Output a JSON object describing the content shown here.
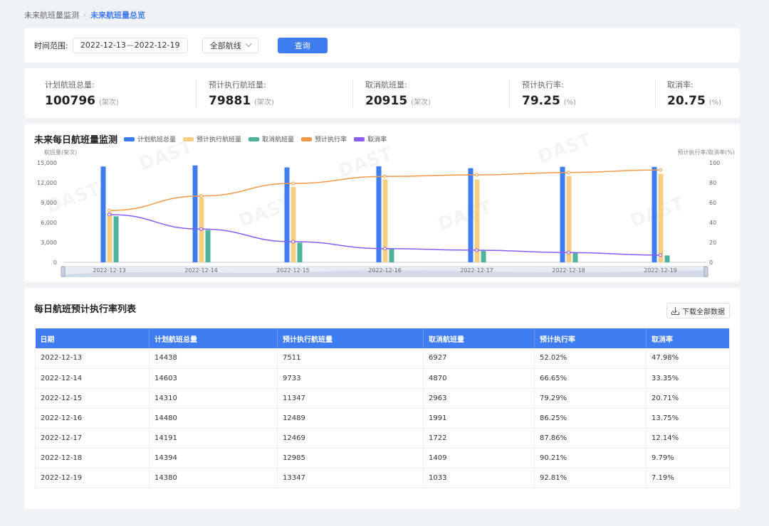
{
  "breadcrumb": {
    "parent": "未来航班量监测",
    "current": "未来航班量总览"
  },
  "filter": {
    "time_label": "时间范围:",
    "date_start": "2022-12-13",
    "date_sep": "—",
    "date_end": "2022-12-19",
    "route_select": "全部航线",
    "query_label": "查询"
  },
  "stats": [
    {
      "label": "计划航班总量:",
      "value": "100796",
      "unit": "(架次)"
    },
    {
      "label": "预计执行航班量:",
      "value": "79881",
      "unit": "(架次)"
    },
    {
      "label": "取消航班量:",
      "value": "20915",
      "unit": "(架次)"
    },
    {
      "label": "预计执行率:",
      "value": "79.25",
      "unit": "(%)"
    },
    {
      "label": "取消率:",
      "value": "20.75",
      "unit": "(%)"
    }
  ],
  "chart": {
    "title": "未来每日航班量监测",
    "watermark": "DAST"
  },
  "chart_data": {
    "type": "bar",
    "categories": [
      "2022-12-13",
      "2022-12-14",
      "2022-12-15",
      "2022-12-16",
      "2022-12-17",
      "2022-12-18",
      "2022-12-19"
    ],
    "series": [
      {
        "name": "计划航班总量",
        "type": "bar",
        "axis": "left",
        "color": "#3f7cf0",
        "values": [
          14438,
          14603,
          14310,
          14480,
          14191,
          14394,
          14380
        ]
      },
      {
        "name": "预计执行航班量",
        "type": "bar",
        "axis": "left",
        "color": "#f5cf86",
        "values": [
          7511,
          9733,
          11347,
          12489,
          12469,
          12985,
          13347
        ]
      },
      {
        "name": "取消航班量",
        "type": "bar",
        "axis": "left",
        "color": "#4fb39b",
        "values": [
          6927,
          4870,
          2963,
          1991,
          1722,
          1409,
          1033
        ]
      },
      {
        "name": "预计执行率",
        "type": "line",
        "axis": "right",
        "color": "#f2994a",
        "values": [
          52.02,
          66.65,
          79.29,
          86.25,
          87.86,
          90.21,
          92.81
        ]
      },
      {
        "name": "取消率",
        "type": "line",
        "axis": "right",
        "color": "#8b5cf6",
        "values": [
          47.98,
          33.35,
          20.71,
          13.75,
          12.14,
          9.79,
          7.19
        ]
      }
    ],
    "ylabel": "航班量(架次)",
    "y2label": "预计执行率/取消率(%)",
    "ylim": [
      0,
      15000
    ],
    "yticks": [
      "15,000",
      "12,000",
      "9,000",
      "6,000",
      "3,000",
      "0"
    ],
    "y2lim": [
      0,
      100
    ],
    "y2ticks": [
      "100",
      "80",
      "60",
      "40",
      "20",
      "0"
    ],
    "legend_position": "top",
    "grid": false
  },
  "table": {
    "title": "每日航班预计执行率列表",
    "download_label": "下载全部数据",
    "columns": [
      "日期",
      "计划航班总量",
      "预计执行航班量",
      "取消航班量",
      "预计执行率",
      "取消率"
    ],
    "rows": [
      [
        "2022-12-13",
        "14438",
        "7511",
        "6927",
        "52.02%",
        "47.98%"
      ],
      [
        "2022-12-14",
        "14603",
        "9733",
        "4870",
        "66.65%",
        "33.35%"
      ],
      [
        "2022-12-15",
        "14310",
        "11347",
        "2963",
        "79.29%",
        "20.71%"
      ],
      [
        "2022-12-16",
        "14480",
        "12489",
        "1991",
        "86.25%",
        "13.75%"
      ],
      [
        "2022-12-17",
        "14191",
        "12469",
        "1722",
        "87.86%",
        "12.14%"
      ],
      [
        "2022-12-18",
        "14394",
        "12985",
        "1409",
        "90.21%",
        "9.79%"
      ],
      [
        "2022-12-19",
        "14380",
        "13347",
        "1033",
        "92.81%",
        "7.19%"
      ]
    ]
  }
}
